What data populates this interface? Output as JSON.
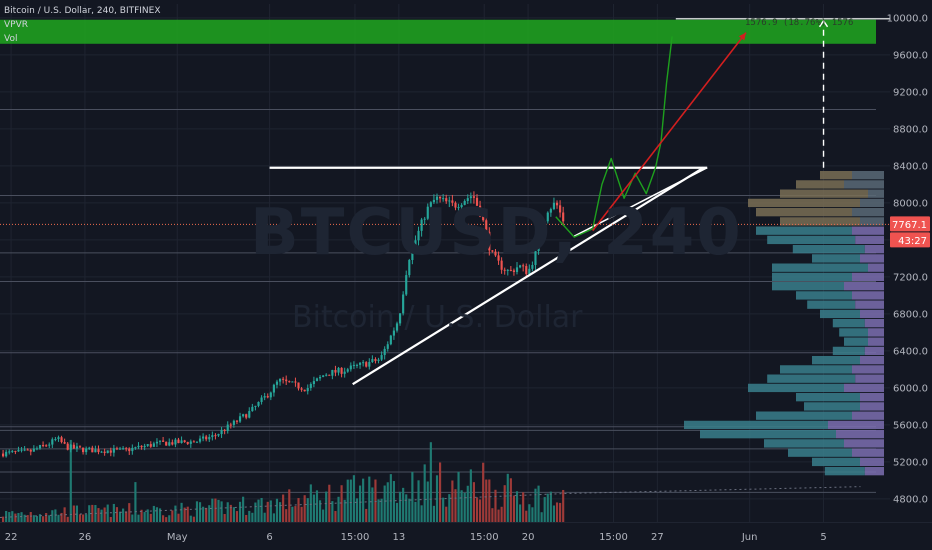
{
  "chart_data": {
    "type": "candlestick",
    "symbol_title": "Bitcoin / U.S. Dollar, 240, BITFINEX",
    "indicators": [
      "VPVR",
      "Vol"
    ],
    "watermark": "BTCUSD, 240",
    "watermark_sub": "Bitcoin / U.S. Dollar",
    "y_axis": {
      "range": [
        4550,
        10150
      ],
      "ticks": [
        "10000.0",
        "9600.0",
        "9200.0",
        "8800.0",
        "8400.0",
        "8000.0",
        "7600.0",
        "7200.0",
        "6800.0",
        "6400.0",
        "6000.0",
        "5600.0",
        "5200.0",
        "4800.0"
      ],
      "tick_values": [
        10000,
        9600,
        9200,
        8800,
        8400,
        8000,
        7600,
        7200,
        6800,
        6400,
        6000,
        5600,
        5200,
        4800
      ]
    },
    "x_axis": {
      "ticks": [
        "22",
        "26",
        "May",
        "6",
        "15:00",
        "13",
        "15:00",
        "20",
        "15:00",
        "27",
        "Jun",
        "5"
      ],
      "tick_days": [
        -9,
        -5,
        0,
        5,
        9.625,
        12,
        16.625,
        19,
        23.625,
        26,
        31,
        35
      ],
      "day_range": [
        -9.6,
        38.6
      ]
    },
    "last_price": "7767.1",
    "last_price_value": 7767.1,
    "countdown": "43:27",
    "measurement_label": "1576.9 (18.76%) 1576",
    "target_zone": [
      9720,
      9980
    ],
    "price_anchors": [
      [
        -9.6,
        5290
      ],
      [
        -8,
        5310
      ],
      [
        -7,
        5390
      ],
      [
        -6.5,
        5450
      ],
      [
        -6,
        5360
      ],
      [
        -5,
        5330
      ],
      [
        -3,
        5320
      ],
      [
        -1,
        5400
      ],
      [
        1,
        5420
      ],
      [
        2,
        5480
      ],
      [
        3,
        5610
      ],
      [
        4,
        5750
      ],
      [
        5,
        5950
      ],
      [
        5.5,
        6080
      ],
      [
        7,
        5990
      ],
      [
        8,
        6150
      ],
      [
        9,
        6190
      ],
      [
        11,
        6310
      ],
      [
        12,
        6750
      ],
      [
        12.5,
        7380
      ],
      [
        13,
        7650
      ],
      [
        13.5,
        7920
      ],
      [
        14,
        8050
      ],
      [
        15,
        7970
      ],
      [
        16,
        8090
      ],
      [
        16.5,
        7850
      ],
      [
        17,
        7450
      ],
      [
        17.5,
        7320
      ],
      [
        18,
        7250
      ],
      [
        18.5,
        7320
      ],
      [
        19,
        7250
      ],
      [
        19.5,
        7500
      ],
      [
        20,
        7920
      ],
      [
        20.5,
        8000
      ],
      [
        21,
        7767.1
      ]
    ],
    "volume_max": 1000,
    "volume_anchors": [
      [
        -9.6,
        80
      ],
      [
        -5,
        110
      ],
      [
        0,
        120
      ],
      [
        5,
        180
      ],
      [
        10,
        300
      ],
      [
        13.5,
        380
      ],
      [
        16,
        330
      ],
      [
        19,
        270
      ],
      [
        21,
        200
      ]
    ],
    "volume_spikes": [
      [
        -5.8,
        720
      ],
      [
        13.7,
        700
      ],
      [
        -2.2,
        350
      ],
      [
        11.5,
        420
      ],
      [
        16.5,
        520
      ]
    ],
    "volume_trend": [
      [
        -9.6,
        40
      ],
      [
        21,
        250
      ],
      [
        37,
        310
      ]
    ],
    "vpvr": [
      [
        8300,
        20,
        20
      ],
      [
        8200,
        30,
        25
      ],
      [
        8100,
        55,
        10
      ],
      [
        8000,
        70,
        15
      ],
      [
        7900,
        60,
        20
      ],
      [
        7800,
        50,
        15
      ],
      [
        7700,
        60,
        20
      ],
      [
        7600,
        55,
        18
      ],
      [
        7500,
        45,
        12
      ],
      [
        7400,
        30,
        15
      ],
      [
        7300,
        60,
        10
      ],
      [
        7200,
        50,
        20
      ],
      [
        7100,
        45,
        25
      ],
      [
        7000,
        35,
        20
      ],
      [
        6900,
        30,
        18
      ],
      [
        6800,
        25,
        15
      ],
      [
        6700,
        20,
        12
      ],
      [
        6600,
        18,
        10
      ],
      [
        6500,
        15,
        10
      ],
      [
        6400,
        20,
        12
      ],
      [
        6300,
        30,
        15
      ],
      [
        6200,
        45,
        20
      ],
      [
        6100,
        55,
        18
      ],
      [
        6000,
        60,
        25
      ],
      [
        5900,
        40,
        15
      ],
      [
        5800,
        35,
        15
      ],
      [
        5700,
        60,
        20
      ],
      [
        5600,
        90,
        35
      ],
      [
        5500,
        85,
        30
      ],
      [
        5400,
        50,
        25
      ],
      [
        5300,
        40,
        20
      ],
      [
        5200,
        30,
        15
      ],
      [
        5100,
        25,
        12
      ]
    ],
    "drawings": {
      "resistance": {
        "from": [
          5,
          8380
        ],
        "to": [
          28.7,
          8380
        ]
      },
      "support": {
        "from": [
          9.5,
          6040
        ],
        "to": [
          28.5,
          8380
        ]
      },
      "triangle_edge": {
        "from": [
          21.5,
          7640
        ],
        "to": [
          28.7,
          8380
        ]
      },
      "arrow": {
        "from": [
          22.5,
          7700
        ],
        "to": [
          30.8,
          9840
        ]
      },
      "measure_top": {
        "from": [
          27,
          9990
        ],
        "to": [
          40,
          9990
        ]
      },
      "measure_vertical": {
        "x": 35,
        "from": 8380,
        "to": 9990
      },
      "projection": [
        [
          20.5,
          7850
        ],
        [
          21.5,
          7630
        ],
        [
          22.5,
          7720
        ],
        [
          23,
          8200
        ],
        [
          23.5,
          8480
        ],
        [
          24.2,
          8050
        ],
        [
          24.8,
          8320
        ],
        [
          25.4,
          8100
        ],
        [
          25.9,
          8380
        ],
        [
          26.2,
          8660
        ],
        [
          26.5,
          9300
        ],
        [
          26.8,
          9800
        ]
      ],
      "horizontal_levels": [
        9010,
        8080,
        7460,
        7150,
        6380,
        5580,
        5540,
        5340,
        5090,
        4870
      ]
    },
    "colors": {
      "background": "#131722",
      "grid": "#1f2431",
      "up": "#26a69a",
      "down": "#ef5350",
      "vol_up": "#1f7a72",
      "vol_down": "#9e3a38",
      "target_zone": "#1f9e1f",
      "projection": "#1ea01e",
      "arrow": "#d21f1f",
      "trendline": "#ffffff",
      "level_line": "#4a4f5e",
      "last_price_line": "#ef6c4e",
      "last_price_bg": "#ef5350",
      "vpvr_up": "#3a7f8c",
      "vpvr_down": "#7c6fb0",
      "vpvr_up_dim": "#5b6a77",
      "vpvr_down_dim": "#7a6f55",
      "axis_text": "#b2b5be"
    }
  }
}
